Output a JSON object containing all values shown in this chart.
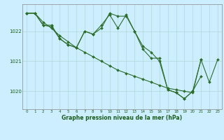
{
  "bg_color": "#cceeff",
  "grid_color": "#aacccc",
  "line_color": "#2d6e2d",
  "text_color": "#1a5c1a",
  "xlabel": "Graphe pression niveau de la mer (hPa)",
  "ylim": [
    1019.4,
    1022.9
  ],
  "xlim": [
    -0.5,
    23.5
  ],
  "yticks": [
    1020,
    1021,
    1022
  ],
  "xticks": [
    0,
    1,
    2,
    3,
    4,
    5,
    6,
    7,
    8,
    9,
    10,
    11,
    12,
    13,
    14,
    15,
    16,
    17,
    18,
    19,
    20,
    21,
    22,
    23
  ],
  "line1": [
    1022.6,
    1022.6,
    null,
    null,
    null,
    null,
    null,
    null,
    null,
    null,
    null,
    null,
    null,
    null,
    null,
    null,
    null,
    null,
    null,
    null,
    null,
    1021.0,
    null,
    null
  ],
  "line2": [
    1022.6,
    1022.6,
    1022.2,
    1022.15,
    1021.75,
    1021.55,
    1021.45,
    1022.0,
    1021.9,
    1022.1,
    1022.6,
    1022.5,
    1022.5,
    1022.0,
    1021.5,
    1021.3,
    1021.0,
    1020.05,
    1019.95,
    1019.75,
    1020.0,
    1020.5,
    null,
    null
  ],
  "line3": [
    1022.6,
    1022.6,
    1022.2,
    1022.2,
    1021.75,
    1021.55,
    1021.45,
    1022.0,
    1021.9,
    1022.2,
    1022.55,
    1022.1,
    1022.55,
    1022.0,
    1021.4,
    1021.1,
    1021.1,
    1020.05,
    1019.95,
    1019.75,
    1020.0,
    1021.05,
    1020.3,
    1021.05
  ],
  "line1_full": [
    1022.6,
    1022.6,
    1022.3,
    1022.1,
    1021.85,
    1021.65,
    1021.45,
    1021.3,
    1021.15,
    1021.0,
    1020.85,
    1020.7,
    1020.6,
    1020.5,
    1020.4,
    1020.3,
    1020.2,
    1020.1,
    1020.05,
    1020.0,
    1019.95,
    1021.05,
    null,
    null
  ]
}
